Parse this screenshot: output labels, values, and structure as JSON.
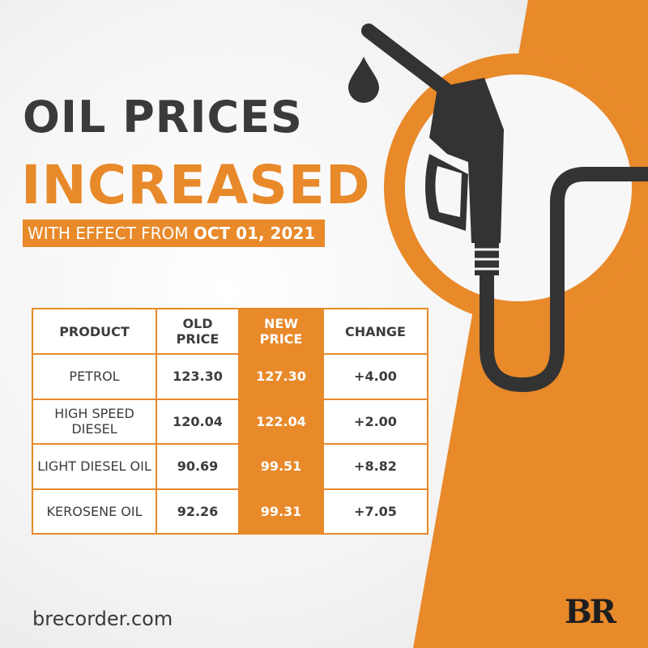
{
  "colors": {
    "accent": "#e8892a",
    "dark": "#3a3a3a",
    "background": "#f3f3f3"
  },
  "heading": {
    "line1": "OIL PRICES",
    "line2": "INCREASED"
  },
  "effective": {
    "prefix": "WITH EFFECT FROM ",
    "date": "OCT 01, 2021"
  },
  "table": {
    "headers": {
      "product": "PRODUCT",
      "old_price": "OLD PRICE",
      "new_price": "NEW PRICE",
      "change": "CHANGE"
    },
    "rows": [
      {
        "product": "PETROL",
        "old_price": "123.30",
        "new_price": "127.30",
        "change": "+4.00"
      },
      {
        "product": "HIGH SPEED DIESEL",
        "old_price": "120.04",
        "new_price": "122.04",
        "change": "+2.00"
      },
      {
        "product": "LIGHT DIESEL OIL",
        "old_price": "90.69",
        "new_price": "99.51",
        "change": "+8.82"
      },
      {
        "product": "KEROSENE OIL",
        "old_price": "92.26",
        "new_price": "99.31",
        "change": "+7.05"
      }
    ]
  },
  "footer": {
    "website": "brecorder.com",
    "logo": "BR"
  },
  "icons": [
    "fuel-nozzle-icon",
    "oil-drop-icon"
  ]
}
